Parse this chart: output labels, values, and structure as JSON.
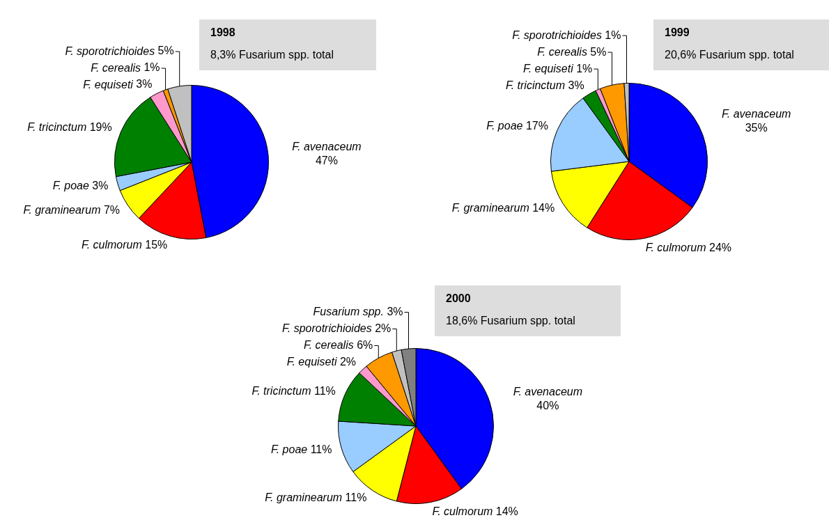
{
  "chart_data": [
    {
      "type": "pie",
      "title": "1998",
      "subtitle": "8,3% Fusarium spp. total",
      "legend": false,
      "categories": [
        "F. avenaceum",
        "F. culmorum",
        "F. graminearum",
        "F. poae",
        "F. tricinctum",
        "F. equiseti",
        "F. cerealis",
        "F. sporotrichioides"
      ],
      "values": [
        47,
        15,
        7,
        3,
        19,
        3,
        1,
        5
      ],
      "value_labels": [
        "47%",
        "15%",
        "7%",
        "3%",
        "19%",
        "3%",
        "1%",
        "5%"
      ],
      "colors": [
        "#0000ff",
        "#ff0000",
        "#ffff00",
        "#99ccff",
        "#008000",
        "#ff99cc",
        "#ff9900",
        "#c0c0c0"
      ]
    },
    {
      "type": "pie",
      "title": "1999",
      "subtitle": "20,6% Fusarium spp. total",
      "legend": false,
      "categories": [
        "F. avenaceum",
        "F. culmorum",
        "F. graminearum",
        "F. poae",
        "F. tricinctum",
        "F. equiseti",
        "F. cerealis",
        "F. sporotrichioides"
      ],
      "values": [
        35,
        24,
        14,
        17,
        3,
        1,
        5,
        1
      ],
      "value_labels": [
        "35%",
        "24%",
        "14%",
        "17%",
        "3%",
        "1%",
        "5%",
        "1%"
      ],
      "colors": [
        "#0000ff",
        "#ff0000",
        "#ffff00",
        "#99ccff",
        "#008000",
        "#ff99cc",
        "#ff9900",
        "#c0c0c0"
      ]
    },
    {
      "type": "pie",
      "title": "2000",
      "subtitle": "18,6% Fusarium spp. total",
      "legend": false,
      "categories": [
        "F. avenaceum",
        "F. culmorum",
        "F. graminearum",
        "F. poae",
        "F. tricinctum",
        "F. equiseti",
        "F. cerealis",
        "F. sporotrichioides",
        "Fusarium spp."
      ],
      "values": [
        40,
        14,
        11,
        11,
        11,
        2,
        6,
        2,
        3
      ],
      "value_labels": [
        "40%",
        "14%",
        "11%",
        "11%",
        "11%",
        "2%",
        "6%",
        "2%",
        "3%"
      ],
      "colors": [
        "#0000ff",
        "#ff0000",
        "#ffff00",
        "#99ccff",
        "#008000",
        "#ff99cc",
        "#ff9900",
        "#c0c0c0",
        "#808080"
      ]
    }
  ]
}
